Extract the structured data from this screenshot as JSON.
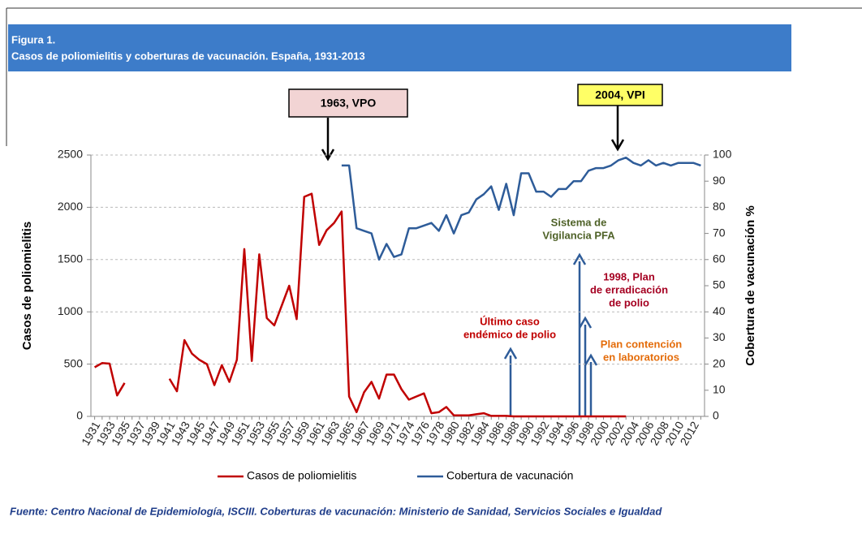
{
  "header": {
    "label": "Figura 1.",
    "title": "Casos de poliomielitis y coberturas de vacunación. España, 1931-2013"
  },
  "chart_data": {
    "type": "line",
    "categories": [
      "1931",
      null,
      "1933",
      null,
      "1935",
      null,
      "1937",
      null,
      "1939",
      null,
      "1941",
      null,
      "1943",
      null,
      "1945",
      null,
      "1947",
      null,
      "1949",
      null,
      "1951",
      null,
      "1953",
      null,
      "1955",
      null,
      "1957",
      null,
      "1959",
      null,
      "1961",
      null,
      "1963",
      null,
      "1965",
      null,
      "1967",
      null,
      "1969",
      null,
      "1971",
      null,
      "1974",
      null,
      "1976",
      null,
      "1978",
      null,
      "1980",
      null,
      "1982",
      null,
      "1984",
      null,
      "1986",
      null,
      "1988",
      null,
      "1990",
      null,
      "1992",
      null,
      "1994",
      null,
      "1996",
      null,
      "1998",
      null,
      "2000",
      null,
      "2002",
      null,
      "2004",
      null,
      "2006",
      null,
      "2008",
      null,
      "2010",
      null,
      "2012",
      null
    ],
    "series": [
      {
        "name": "Casos de poliomielitis",
        "color": "#c00000",
        "values": [
          470,
          510,
          505,
          200,
          320,
          null,
          null,
          null,
          null,
          null,
          360,
          240,
          730,
          600,
          540,
          500,
          300,
          490,
          330,
          540,
          1600,
          530,
          1550,
          940,
          870,
          1060,
          1250,
          930,
          2100,
          2130,
          1640,
          1780,
          1850,
          1960,
          190,
          40,
          230,
          330,
          170,
          400,
          400,
          260,
          160,
          190,
          220,
          30,
          40,
          90,
          10,
          10,
          10,
          20,
          30,
          5,
          5,
          5,
          0,
          0,
          0,
          0,
          0,
          0,
          0,
          0,
          0,
          0,
          0,
          0,
          0,
          0,
          0,
          0,
          null,
          null,
          null,
          null,
          null,
          null,
          null,
          null,
          null,
          null
        ]
      },
      {
        "name": "Cobertura de vacunación",
        "color": "#2e5c99",
        "axis": "y2",
        "values": [
          null,
          null,
          null,
          null,
          null,
          null,
          null,
          null,
          null,
          null,
          null,
          null,
          null,
          null,
          null,
          null,
          null,
          null,
          null,
          null,
          null,
          null,
          null,
          null,
          null,
          null,
          null,
          null,
          null,
          null,
          null,
          null,
          null,
          96,
          96,
          72,
          71,
          70,
          60,
          66,
          61,
          62,
          72,
          72,
          73,
          74,
          71,
          77,
          70,
          77,
          78,
          83,
          85,
          88,
          79,
          89,
          77,
          93,
          93,
          86,
          86,
          84,
          87,
          87,
          90,
          90,
          94,
          95,
          95,
          96,
          98,
          99,
          97,
          96,
          98,
          96,
          97,
          96,
          97,
          97,
          97,
          96
        ]
      }
    ],
    "ylabel": "Casos de poliomielitis",
    "y2label": "Cobertura de vacunación %",
    "ylim": [
      0,
      2500
    ],
    "yticks": [
      0,
      500,
      1000,
      1500,
      2000,
      2500
    ],
    "y2lim": [
      0,
      100
    ],
    "y2ticks": [
      0,
      10,
      20,
      30,
      40,
      50,
      60,
      70,
      80,
      90,
      100
    ],
    "grid": true,
    "legend": "bottom",
    "annotations": [
      {
        "text": [
          "1963, VPO"
        ],
        "color": "#000000",
        "box": "#f2d4d4"
      },
      {
        "text": [
          "2004, VPI"
        ],
        "color": "#000000",
        "box": "#ffff66"
      },
      {
        "text": [
          "Sistema de",
          "Vigilancia PFA"
        ],
        "color": "#4f6228"
      },
      {
        "text": [
          "1998, Plan",
          "de erradicación",
          "de polio"
        ],
        "color": "#a50021"
      },
      {
        "text": [
          "Último caso",
          "endémico de polio"
        ],
        "color": "#c00000"
      },
      {
        "text": [
          "Plan contención",
          "en laboratorios"
        ],
        "color": "#e46c0a"
      }
    ]
  },
  "footer": {
    "source": "Fuente: Centro Nacional de Epidemiología, ISCIII. Coberturas de vacunación: Ministerio de Sanidad, Servicios Sociales e Igualdad"
  }
}
